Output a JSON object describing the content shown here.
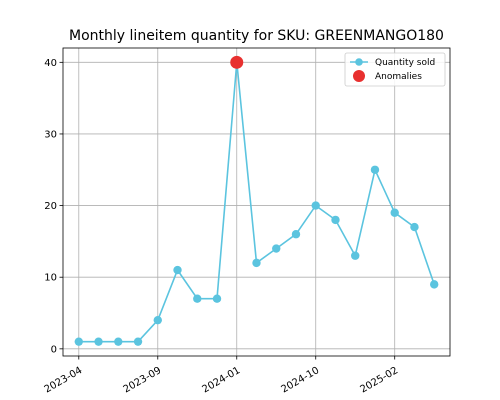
{
  "chart_data": {
    "type": "line",
    "title": "Monthly lineitem quantity for SKU: GREENMANGO180",
    "xlabel": "",
    "ylabel": "",
    "x_tick_labels": [
      "2023-04",
      "2023-09",
      "2024-01",
      "2024-10",
      "2025-02"
    ],
    "x_tick_positions": [
      0,
      4,
      8,
      12,
      16
    ],
    "xlim": [
      -0.8,
      18.8
    ],
    "y_ticks": [
      0,
      10,
      20,
      30,
      40
    ],
    "ylim": [
      -1,
      42
    ],
    "grid": true,
    "legend_position": "top-right",
    "series": [
      {
        "name": "Quantity sold",
        "color": "#5bc4df",
        "marker": "circle",
        "values": [
          1,
          1,
          1,
          1,
          4,
          11,
          7,
          7,
          40,
          12,
          14,
          16,
          20,
          18,
          13,
          25,
          19,
          17,
          9
        ]
      }
    ],
    "anomalies": {
      "name": "Anomalies",
      "color": "#e8302f",
      "points": [
        {
          "x": 8,
          "y": 40
        }
      ]
    }
  }
}
